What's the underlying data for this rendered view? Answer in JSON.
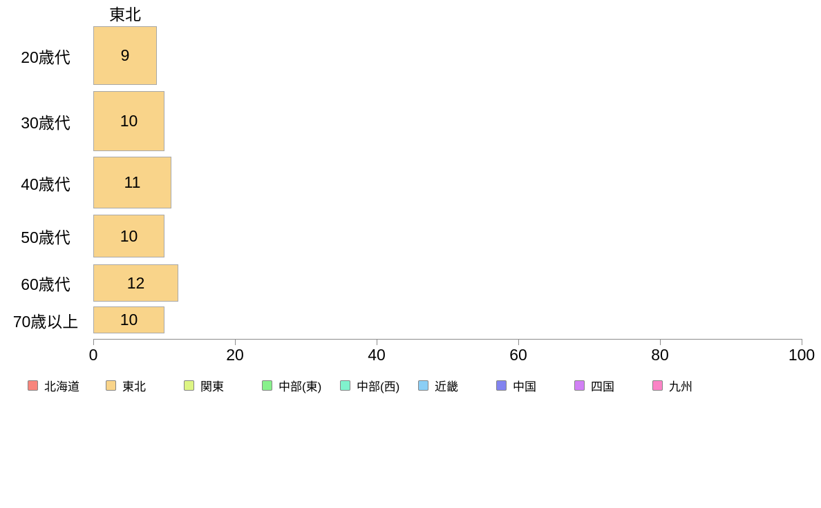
{
  "chart_data": {
    "type": "bar",
    "orientation": "horizontal",
    "title": "東北",
    "categories": [
      "20歳代",
      "30歳代",
      "40歳代",
      "50歳代",
      "60歳代",
      "70歳以上"
    ],
    "values": [
      9,
      10,
      11,
      10,
      12,
      10
    ],
    "xlim": [
      0,
      100
    ],
    "x_ticks": [
      0,
      20,
      40,
      60,
      80,
      100
    ],
    "grid": "off",
    "legend_position": "bottom",
    "bar_color": "#f9d48a",
    "bar_border_color": "#a8a8a8",
    "axis_color": "#8c8c8c",
    "text_color": "#000000",
    "legend": [
      {
        "label": "北海道",
        "color": "#f8857c"
      },
      {
        "label": "東北",
        "color": "#f9d48a"
      },
      {
        "label": "関東",
        "color": "#ddf584"
      },
      {
        "label": "中部(東)",
        "color": "#88f18c"
      },
      {
        "label": "中部(西)",
        "color": "#80f2cd"
      },
      {
        "label": "近畿",
        "color": "#8bcef5"
      },
      {
        "label": "中国",
        "color": "#8283f0"
      },
      {
        "label": "四国",
        "color": "#d180f5"
      },
      {
        "label": "九州",
        "color": "#fb84c6"
      }
    ]
  }
}
